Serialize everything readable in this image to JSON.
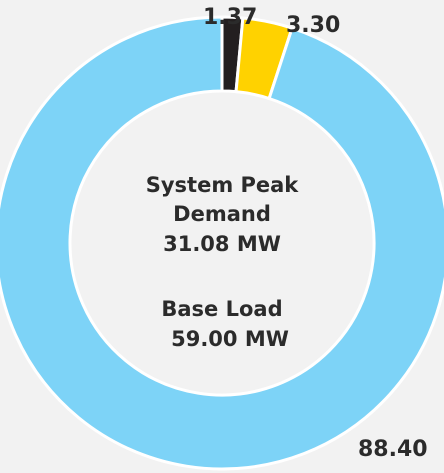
{
  "chart_data": {
    "type": "donut",
    "categories": [
      null,
      null,
      null
    ],
    "values": [
      1.37,
      3.3,
      88.4
    ],
    "value_labels": [
      "1.37",
      "3.30",
      "88.40"
    ],
    "colors": [
      "#231f20",
      "#ffd200",
      "#7dd3f7"
    ],
    "center_text": [
      "System Peak",
      "Demand",
      "31.08 MW",
      "Base Load",
      "59.00 MW"
    ]
  }
}
